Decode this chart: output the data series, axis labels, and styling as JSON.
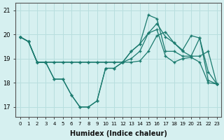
{
  "xlabel": "Humidex (Indice chaleur)",
  "bg_color": "#d6f0f0",
  "grid_color": "#b8dede",
  "line_color": "#1a7a6e",
  "xlim": [
    -0.5,
    23.5
  ],
  "ylim": [
    16.6,
    21.3
  ],
  "yticks": [
    17,
    18,
    19,
    20,
    21
  ],
  "xticks": [
    0,
    1,
    2,
    3,
    4,
    5,
    6,
    7,
    8,
    9,
    10,
    11,
    12,
    13,
    14,
    15,
    16,
    17,
    18,
    19,
    20,
    21,
    22,
    23
  ],
  "series": [
    [
      19.9,
      19.7,
      18.85,
      18.85,
      18.15,
      18.15,
      17.5,
      17.0,
      17.0,
      17.25,
      18.6,
      18.6,
      18.85,
      19.3,
      19.6,
      20.8,
      20.65,
      19.3,
      19.3,
      19.1,
      19.1,
      19.85,
      18.45,
      17.95
    ],
    [
      19.9,
      19.7,
      18.85,
      18.85,
      18.85,
      18.85,
      18.85,
      18.85,
      18.85,
      18.85,
      18.85,
      18.85,
      18.85,
      18.85,
      18.9,
      19.3,
      19.95,
      20.1,
      19.65,
      19.3,
      19.1,
      19.1,
      19.3,
      17.95
    ],
    [
      19.9,
      19.7,
      18.85,
      18.85,
      18.85,
      18.85,
      18.85,
      18.85,
      18.85,
      18.85,
      18.85,
      18.85,
      18.85,
      19.0,
      19.3,
      20.05,
      20.45,
      19.9,
      19.65,
      19.35,
      19.95,
      19.85,
      18.1,
      17.95
    ],
    [
      19.9,
      19.7,
      18.85,
      18.85,
      18.15,
      18.15,
      17.5,
      17.0,
      17.0,
      17.25,
      18.6,
      18.6,
      18.85,
      19.3,
      19.6,
      20.05,
      20.2,
      19.1,
      18.85,
      19.0,
      19.05,
      18.85,
      18.0,
      17.95
    ]
  ]
}
